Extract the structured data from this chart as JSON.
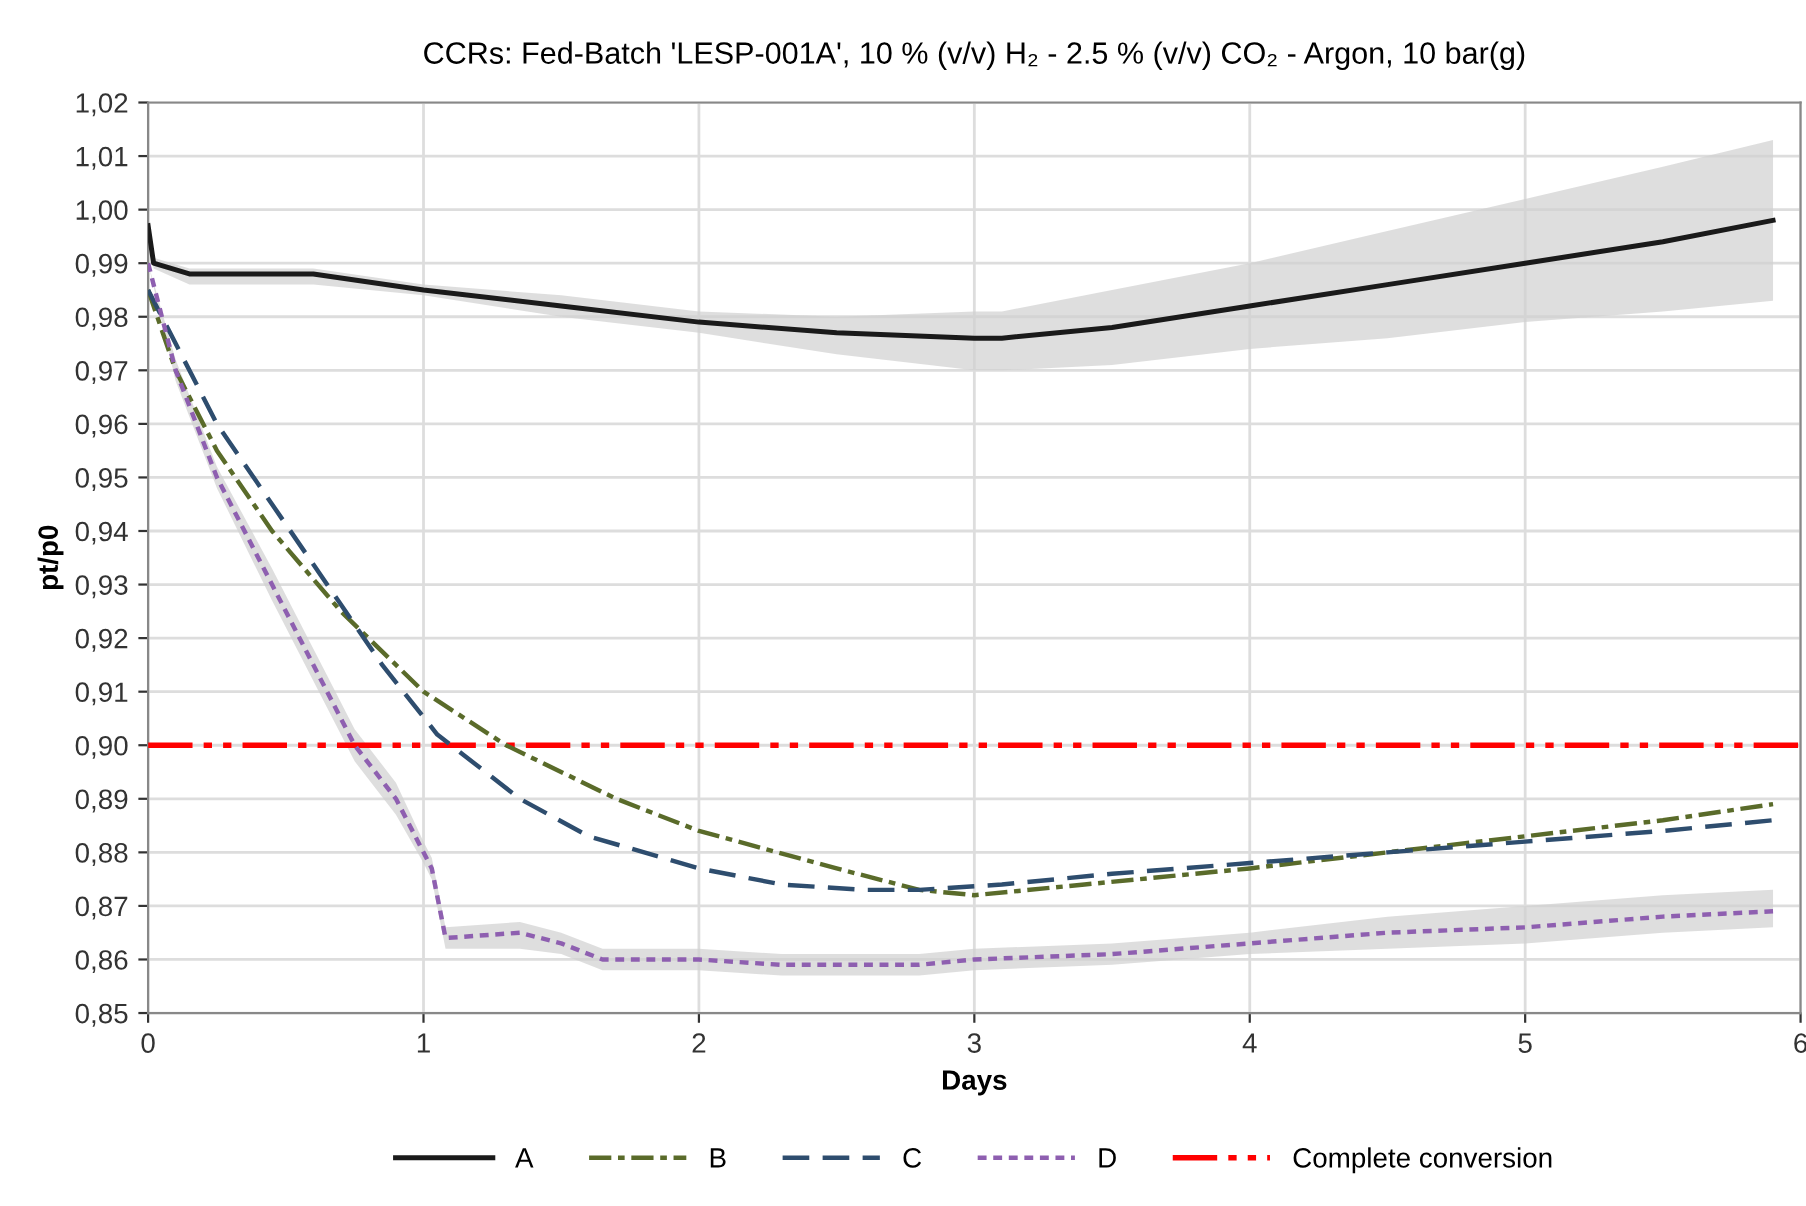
{
  "chart_data": {
    "type": "line",
    "title": "CCRs: Fed-Batch 'LESP-001A', 10 % (v/v) H₂ - 2.5 % (v/v) CO₂ - Argon, 10 bar(g)",
    "xlabel": "Days",
    "ylabel": "pt/p0",
    "xlim": [
      0,
      6
    ],
    "xticks": [
      0,
      1,
      2,
      3,
      4,
      5,
      6
    ],
    "ylim": [
      0.85,
      1.02
    ],
    "yticks": [
      {
        "value": 0.85,
        "label": "0,85"
      },
      {
        "value": 0.86,
        "label": "0,86"
      },
      {
        "value": 0.87,
        "label": "0,87"
      },
      {
        "value": 0.88,
        "label": "0,88"
      },
      {
        "value": 0.89,
        "label": "0,89"
      },
      {
        "value": 0.9,
        "label": "0,90"
      },
      {
        "value": 0.91,
        "label": "0,91"
      },
      {
        "value": 0.92,
        "label": "0,92"
      },
      {
        "value": 0.93,
        "label": "0,93"
      },
      {
        "value": 0.94,
        "label": "0,94"
      },
      {
        "value": 0.95,
        "label": "0,95"
      },
      {
        "value": 0.96,
        "label": "0,96"
      },
      {
        "value": 0.97,
        "label": "0,97"
      },
      {
        "value": 0.98,
        "label": "0,98"
      },
      {
        "value": 0.99,
        "label": "0,99"
      },
      {
        "value": 1.0,
        "label": "1,00"
      },
      {
        "value": 1.01,
        "label": "1,01"
      },
      {
        "value": 1.02,
        "label": "1,02"
      }
    ],
    "grid": true,
    "legend": "bottom",
    "marker": "none",
    "series": [
      {
        "name": "A",
        "color": "#1a1a1a",
        "line_style": "solid",
        "x": [
          0,
          0.02,
          0.15,
          0.6,
          1,
          1.5,
          2,
          2.5,
          3,
          3.1,
          3.5,
          4,
          4.5,
          5,
          5.5,
          5.9
        ],
        "values": [
          0.997,
          0.99,
          0.988,
          0.988,
          0.985,
          0.982,
          0.979,
          0.977,
          0.976,
          0.976,
          0.978,
          0.982,
          0.986,
          0.99,
          0.994,
          0.998
        ],
        "lower": [
          0.997,
          0.989,
          0.986,
          0.986,
          0.984,
          0.98,
          0.977,
          0.973,
          0.97,
          0.97,
          0.971,
          0.974,
          0.976,
          0.979,
          0.981,
          0.983
        ],
        "upper": [
          0.997,
          0.991,
          0.989,
          0.989,
          0.986,
          0.984,
          0.981,
          0.98,
          0.981,
          0.981,
          0.985,
          0.99,
          0.996,
          1.002,
          1.008,
          1.013
        ]
      },
      {
        "name": "B",
        "color": "#5a6b2a",
        "line_style": "dashdot",
        "x": [
          0,
          0.1,
          0.25,
          0.45,
          0.7,
          1.0,
          1.3,
          1.7,
          2.0,
          2.5,
          2.8,
          3.0,
          3.4,
          4,
          4.5,
          5,
          5.5,
          5.9
        ],
        "values": [
          0.985,
          0.97,
          0.955,
          0.94,
          0.925,
          0.91,
          0.9,
          0.89,
          0.884,
          0.877,
          0.873,
          0.872,
          0.874,
          0.877,
          0.88,
          0.883,
          0.886,
          0.889
        ]
      },
      {
        "name": "C",
        "color": "#2e4d6e",
        "line_style": "dashed",
        "x": [
          0,
          0.1,
          0.25,
          0.45,
          0.65,
          0.85,
          1.05,
          1.35,
          1.6,
          2.0,
          2.3,
          2.6,
          2.8,
          3.1,
          3.5,
          4,
          4.5,
          5,
          5.5,
          5.9
        ],
        "values": [
          0.985,
          0.975,
          0.96,
          0.945,
          0.93,
          0.915,
          0.902,
          0.89,
          0.883,
          0.877,
          0.874,
          0.873,
          0.873,
          0.874,
          0.876,
          0.878,
          0.88,
          0.882,
          0.884,
          0.886
        ]
      },
      {
        "name": "D",
        "color": "#8e5fb0",
        "line_style": "dotted",
        "x": [
          0,
          0.1,
          0.25,
          0.45,
          0.65,
          0.75,
          0.9,
          1.0,
          1.03,
          1.08,
          1.35,
          1.5,
          1.65,
          2.0,
          2.3,
          2.8,
          3.0,
          3.5,
          4,
          4.5,
          5,
          5.5,
          5.9
        ],
        "values": [
          0.99,
          0.97,
          0.95,
          0.93,
          0.91,
          0.9,
          0.89,
          0.88,
          0.877,
          0.864,
          0.865,
          0.863,
          0.86,
          0.86,
          0.859,
          0.859,
          0.86,
          0.861,
          0.863,
          0.865,
          0.866,
          0.868,
          0.869
        ],
        "lower": [
          0.99,
          0.968,
          0.948,
          0.927,
          0.907,
          0.897,
          0.887,
          0.878,
          0.875,
          0.862,
          0.862,
          0.861,
          0.858,
          0.858,
          0.857,
          0.857,
          0.858,
          0.859,
          0.861,
          0.862,
          0.863,
          0.865,
          0.866
        ],
        "upper": [
          0.99,
          0.972,
          0.952,
          0.933,
          0.913,
          0.903,
          0.893,
          0.882,
          0.879,
          0.866,
          0.867,
          0.865,
          0.862,
          0.862,
          0.861,
          0.861,
          0.862,
          0.863,
          0.865,
          0.868,
          0.87,
          0.872,
          0.873
        ]
      }
    ],
    "ref_lines": [
      {
        "axis": "y",
        "value": 0.9,
        "label": "Complete conversion",
        "color": "#ff0000",
        "line_style": "dashdotdot"
      }
    ]
  }
}
